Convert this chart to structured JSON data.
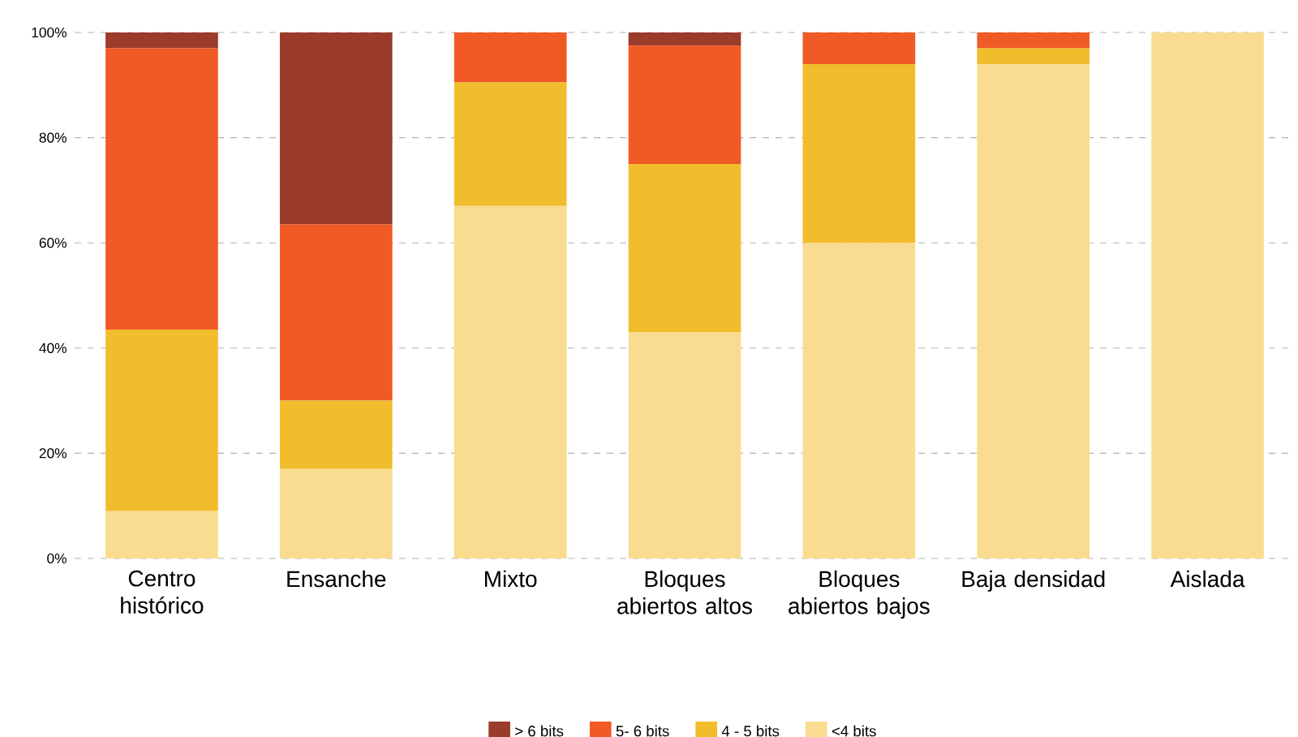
{
  "chart_data": {
    "type": "bar",
    "stacked": true,
    "categories": [
      "Centro histórico",
      "Ensanche",
      "Mixto",
      "Bloques abiertos altos",
      "Bloques abiertos bajos",
      "Baja densidad",
      "Aislada"
    ],
    "series": [
      {
        "name": "<4 bits",
        "color": "#f9dc8f",
        "values": [
          9,
          17,
          67,
          43,
          60,
          94,
          100
        ]
      },
      {
        "name": "4 - 5 bits",
        "color": "#f2bd2c",
        "values": [
          34.5,
          13,
          23.5,
          32,
          34,
          3,
          0
        ]
      },
      {
        "name": "5- 6 bits",
        "color": "#f05a24",
        "values": [
          53.5,
          33.5,
          9.5,
          22.5,
          6,
          3,
          0
        ]
      },
      {
        "name": "> 6 bits",
        "color": "#9b3b2a",
        "values": [
          3,
          36.5,
          0,
          2.5,
          0,
          0,
          0
        ]
      }
    ],
    "ylim": [
      0,
      100
    ],
    "yticks": [
      {
        "value": 0,
        "label": "0%"
      },
      {
        "value": 20,
        "label": "20%"
      },
      {
        "value": 40,
        "label": "40%"
      },
      {
        "value": 60,
        "label": "60%"
      },
      {
        "value": 80,
        "label": "80%"
      },
      {
        "value": 100,
        "label": "100%"
      }
    ],
    "grid": "y",
    "legend": "bottom"
  }
}
